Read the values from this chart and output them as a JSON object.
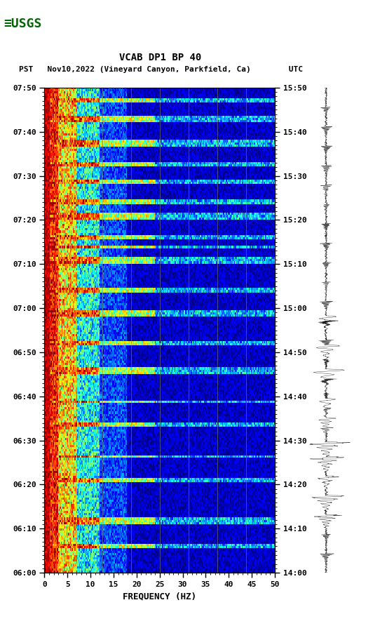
{
  "title_line1": "VCAB DP1 BP 40",
  "title_line2": "PST   Nov10,2022 (Vineyard Canyon, Parkfield, Ca)        UTC",
  "xlabel": "FREQUENCY (HZ)",
  "freq_min": 0,
  "freq_max": 50,
  "ytick_pst": [
    "06:00",
    "06:10",
    "06:20",
    "06:30",
    "06:40",
    "06:50",
    "07:00",
    "07:10",
    "07:20",
    "07:30",
    "07:40",
    "07:50"
  ],
  "ytick_utc": [
    "14:00",
    "14:10",
    "14:20",
    "14:30",
    "14:40",
    "14:50",
    "15:00",
    "15:10",
    "15:20",
    "15:30",
    "15:40",
    "15:50"
  ],
  "xticks": [
    0,
    5,
    10,
    15,
    20,
    25,
    30,
    35,
    40,
    45,
    50
  ],
  "vline_freqs": [
    12.5,
    18.75,
    25,
    31.25,
    37.5,
    43.75
  ],
  "background_color": "#ffffff",
  "spectrogram_colormap": "jet",
  "fig_width": 5.52,
  "fig_height": 8.92,
  "logo_color": "#006400",
  "font_family": "monospace",
  "noise_seed": 42,
  "n_time": 220,
  "n_freq": 250
}
